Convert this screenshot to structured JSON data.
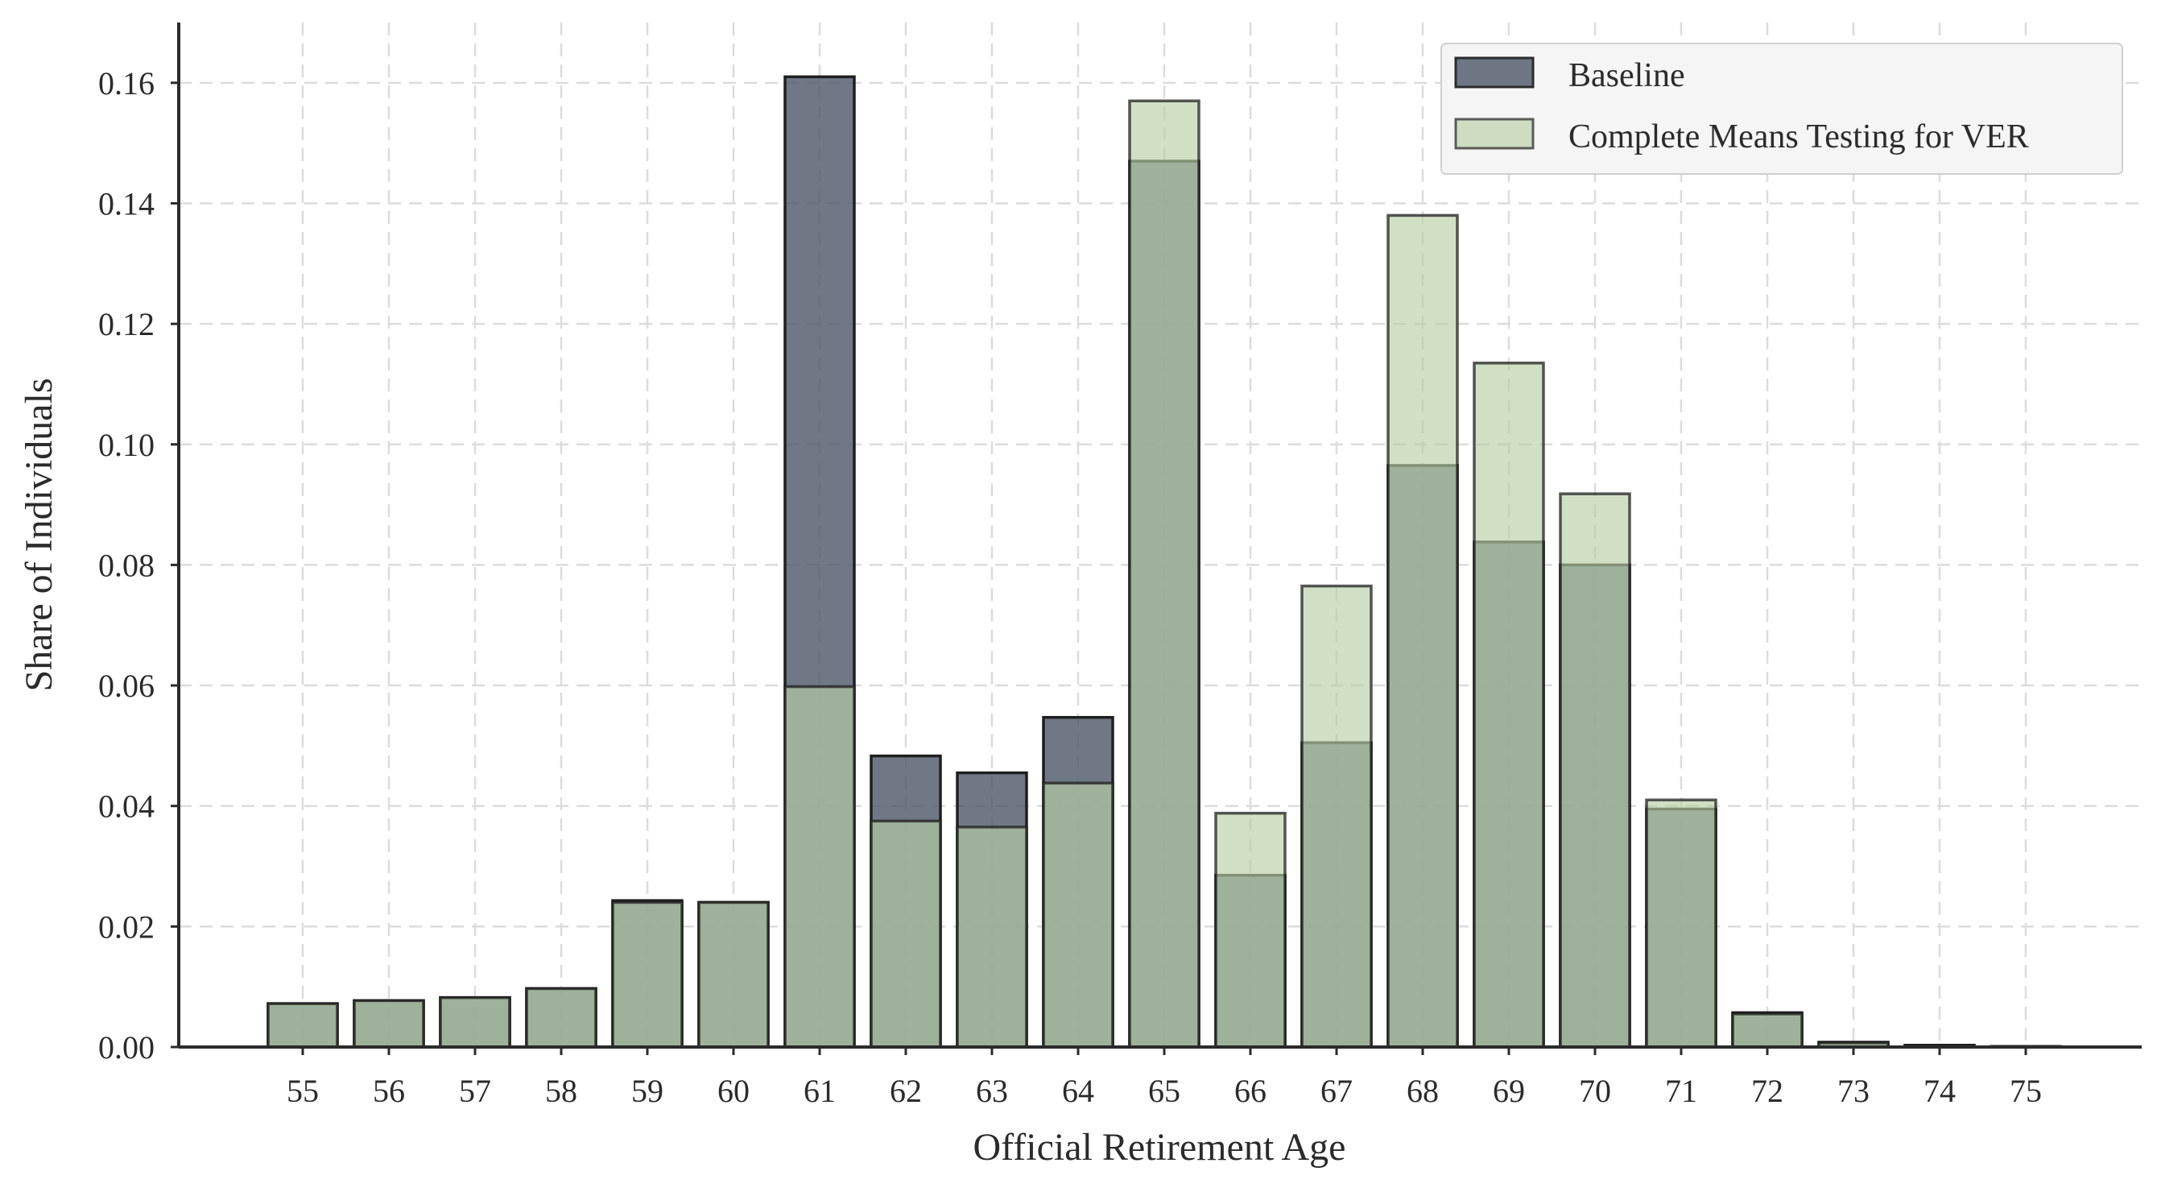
{
  "chart_data": {
    "type": "bar",
    "categories": [
      "55",
      "56",
      "57",
      "58",
      "59",
      "60",
      "61",
      "62",
      "63",
      "64",
      "65",
      "66",
      "67",
      "68",
      "69",
      "70",
      "71",
      "72",
      "73",
      "74",
      "75"
    ],
    "series": [
      {
        "name": "Baseline",
        "values": [
          0.0072,
          0.0077,
          0.0082,
          0.0097,
          0.0243,
          0.024,
          0.161,
          0.0483,
          0.0455,
          0.0547,
          0.147,
          0.0285,
          0.0505,
          0.0965,
          0.0838,
          0.08,
          0.0395,
          0.0057,
          0.0008,
          0.0003,
          0.0001
        ],
        "color": "#525a6a"
      },
      {
        "name": "Complete Means Testing for VER",
        "values": [
          0.0072,
          0.0077,
          0.0082,
          0.0097,
          0.024,
          0.024,
          0.0598,
          0.0375,
          0.0365,
          0.0438,
          0.157,
          0.0388,
          0.0765,
          0.138,
          0.1135,
          0.0918,
          0.041,
          0.0055,
          0.0007,
          0.0002,
          0.0001
        ],
        "color": "#b8cfa6"
      }
    ],
    "xlabel": "Official Retirement Age",
    "ylabel": "Share of Individuals",
    "ylim": [
      0,
      0.17
    ],
    "yticks": [
      "0.00",
      "0.02",
      "0.04",
      "0.06",
      "0.08",
      "0.10",
      "0.12",
      "0.14",
      "0.16"
    ],
    "ytick_values": [
      0,
      0.02,
      0.04,
      0.06,
      0.08,
      0.1,
      0.12,
      0.14,
      0.16
    ],
    "grid": true,
    "legend_position": "top-right"
  }
}
